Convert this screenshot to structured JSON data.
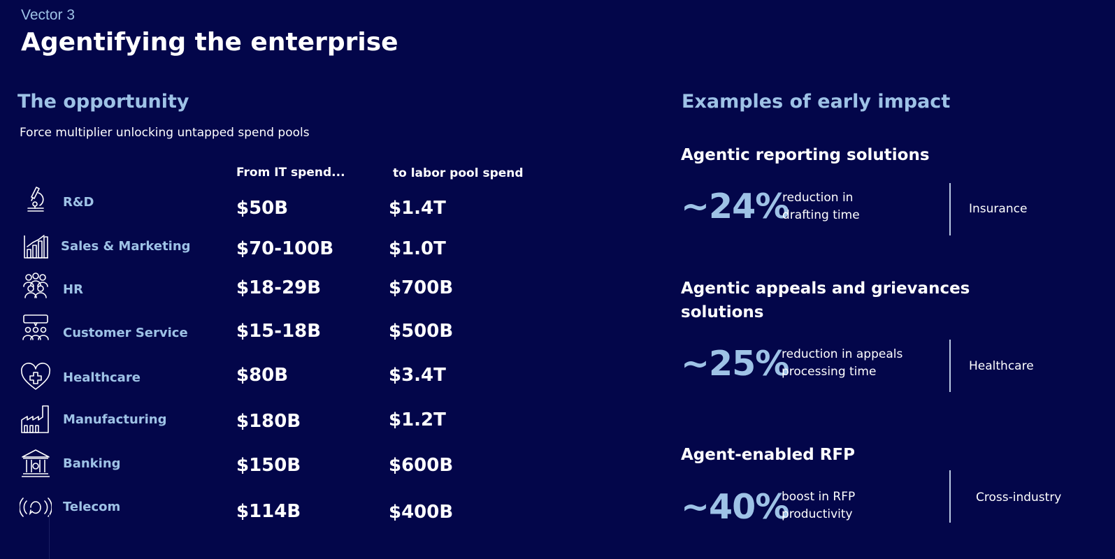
{
  "header": {
    "vector_label": "Vector 3",
    "title": "Agentifying the enterprise"
  },
  "opportunity": {
    "heading": "The opportunity",
    "subtitle": "Force multiplier unlocking untapped spend pools",
    "col_it": "From IT spend...",
    "col_labor": "to labor pool spend",
    "rows": [
      {
        "icon": "microscope-icon",
        "label": "R&D",
        "it_spend": "$50B",
        "labor_spend": "$1.4T"
      },
      {
        "icon": "bar-chart-icon",
        "label": "Sales & Marketing",
        "it_spend": "$70-100B",
        "labor_spend": "$1.0T"
      },
      {
        "icon": "people-group-icon",
        "label": "HR",
        "it_spend": "$18-29B",
        "labor_spend": "$700B"
      },
      {
        "icon": "customer-service-icon",
        "label": "Customer Service",
        "it_spend": "$15-18B",
        "labor_spend": "$500B"
      },
      {
        "icon": "heart-plus-icon",
        "label": "Healthcare",
        "it_spend": "$80B",
        "labor_spend": "$3.4T"
      },
      {
        "icon": "factory-icon",
        "label": "Manufacturing",
        "it_spend": "$180B",
        "labor_spend": "$1.2T"
      },
      {
        "icon": "bank-icon",
        "label": "Banking",
        "it_spend": "$150B",
        "labor_spend": "$600B"
      },
      {
        "icon": "broadcast-icon",
        "label": "Telecom",
        "it_spend": "$114B",
        "labor_spend": "$400B"
      }
    ]
  },
  "impact": {
    "heading": "Examples of early impact",
    "examples": [
      {
        "title_line1": "Agentic reporting solutions",
        "title_line2": "",
        "pct": "~24%",
        "desc_line1": "reduction in",
        "desc_line2": "drafting time",
        "industry": "Insurance"
      },
      {
        "title_line1": "Agentic appeals and grievances",
        "title_line2": "solutions",
        "pct": "~25%",
        "desc_line1": "reduction in appeals",
        "desc_line2": "processing time",
        "industry": "Healthcare"
      },
      {
        "title_line1": "Agent-enabled RFP",
        "title_line2": "",
        "pct": "~40%",
        "desc_line1": "boost in RFP",
        "desc_line2": "productivity",
        "industry": "Cross-industry"
      }
    ]
  }
}
